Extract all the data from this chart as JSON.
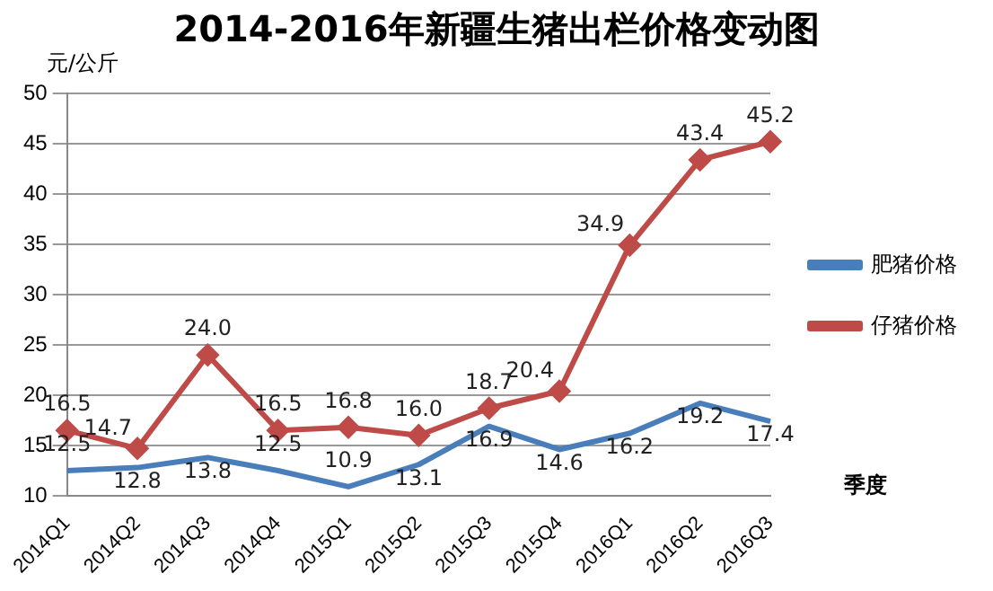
{
  "chart_data": {
    "type": "line",
    "title": "2014-2016年新疆生猪出栏价格变动图",
    "xlabel": "季度",
    "ylabel": "元/公斤",
    "categories": [
      "2014Q1",
      "2014Q2",
      "2014Q3",
      "2014Q4",
      "2015Q1",
      "2015Q2",
      "2015Q3",
      "2015Q4",
      "2016Q1",
      "2016Q2",
      "2016Q3"
    ],
    "series": [
      {
        "name": "肥猪价格",
        "color": "#4a7ebb",
        "marker": "none",
        "values": [
          12.5,
          12.8,
          13.8,
          12.5,
          10.9,
          13.1,
          16.9,
          14.6,
          16.2,
          19.2,
          17.4
        ],
        "value_labels": [
          "12.5",
          "12.8",
          "13.8",
          "12.5",
          "10.9",
          "13.1",
          "16.9",
          "14.6",
          "16.2",
          "19.2",
          "17.4"
        ]
      },
      {
        "name": "仔猪价格",
        "color": "#be4b48",
        "marker": "diamond",
        "values": [
          16.5,
          14.7,
          24.0,
          16.5,
          16.8,
          16.0,
          18.7,
          20.4,
          34.9,
          43.4,
          45.2
        ],
        "value_labels": [
          "16.5",
          "14.7",
          "24.0",
          "16.5",
          "16.8",
          "16.0",
          "18.7",
          "20.4",
          "34.9",
          "43.4",
          "45.2"
        ]
      }
    ],
    "ylim": [
      10,
      50
    ],
    "yticks": [
      10,
      15,
      20,
      25,
      30,
      35,
      40,
      45,
      50
    ],
    "grid": "y",
    "legend": "right"
  }
}
